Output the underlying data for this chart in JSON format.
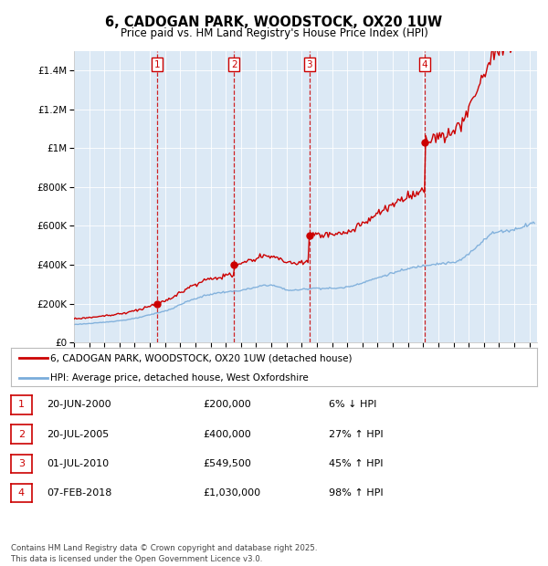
{
  "title": "6, CADOGAN PARK, WOODSTOCK, OX20 1UW",
  "subtitle": "Price paid vs. HM Land Registry's House Price Index (HPI)",
  "footer": "Contains HM Land Registry data © Crown copyright and database right 2025.\nThis data is licensed under the Open Government Licence v3.0.",
  "legend_line1": "6, CADOGAN PARK, WOODSTOCK, OX20 1UW (detached house)",
  "legend_line2": "HPI: Average price, detached house, West Oxfordshire",
  "transactions": [
    {
      "num": 1,
      "date": "20-JUN-2000",
      "date_val": 2000.47,
      "price": 200000,
      "pct": "6%",
      "dir": "↓",
      "label": "6% ↓ HPI"
    },
    {
      "num": 2,
      "date": "20-JUL-2005",
      "date_val": 2005.55,
      "price": 400000,
      "pct": "27%",
      "dir": "↑",
      "label": "27% ↑ HPI"
    },
    {
      "num": 3,
      "date": "01-JUL-2010",
      "date_val": 2010.5,
      "price": 549500,
      "pct": "45%",
      "dir": "↑",
      "label": "45% ↑ HPI"
    },
    {
      "num": 4,
      "date": "07-FEB-2018",
      "date_val": 2018.1,
      "price": 1030000,
      "pct": "98%",
      "dir": "↑",
      "label": "98% ↑ HPI"
    }
  ],
  "property_line_color": "#cc0000",
  "hpi_line_color": "#7aacda",
  "vline_color": "#cc0000",
  "box_color": "#cc0000",
  "background_color": "#dce9f5",
  "plot_bg": "#ffffff",
  "ylim": [
    0,
    1500000
  ],
  "yticks": [
    0,
    200000,
    400000,
    600000,
    800000,
    1000000,
    1200000,
    1400000
  ],
  "xlim_start": 1995.0,
  "xlim_end": 2025.5,
  "xticks": [
    1995,
    1996,
    1997,
    1998,
    1999,
    2000,
    2001,
    2002,
    2003,
    2004,
    2005,
    2006,
    2007,
    2008,
    2009,
    2010,
    2011,
    2012,
    2013,
    2014,
    2015,
    2016,
    2017,
    2018,
    2019,
    2020,
    2021,
    2022,
    2023,
    2024,
    2025
  ],
  "hpi_waypoints": [
    [
      1995.0,
      92000
    ],
    [
      1995.5,
      95000
    ],
    [
      1996.0,
      97000
    ],
    [
      1996.5,
      100000
    ],
    [
      1997.0,
      104000
    ],
    [
      1997.5,
      108000
    ],
    [
      1998.0,
      112000
    ],
    [
      1998.5,
      117000
    ],
    [
      1999.0,
      123000
    ],
    [
      1999.5,
      132000
    ],
    [
      2000.0,
      142000
    ],
    [
      2000.5,
      152000
    ],
    [
      2001.0,
      162000
    ],
    [
      2001.5,
      175000
    ],
    [
      2002.0,
      195000
    ],
    [
      2002.5,
      212000
    ],
    [
      2003.0,
      225000
    ],
    [
      2003.5,
      238000
    ],
    [
      2004.0,
      248000
    ],
    [
      2004.5,
      255000
    ],
    [
      2005.0,
      260000
    ],
    [
      2005.5,
      262000
    ],
    [
      2006.0,
      268000
    ],
    [
      2006.5,
      275000
    ],
    [
      2007.0,
      283000
    ],
    [
      2007.5,
      295000
    ],
    [
      2008.0,
      295000
    ],
    [
      2008.5,
      285000
    ],
    [
      2009.0,
      270000
    ],
    [
      2009.5,
      268000
    ],
    [
      2010.0,
      272000
    ],
    [
      2010.5,
      278000
    ],
    [
      2011.0,
      280000
    ],
    [
      2011.5,
      278000
    ],
    [
      2012.0,
      278000
    ],
    [
      2012.5,
      280000
    ],
    [
      2013.0,
      285000
    ],
    [
      2013.5,
      295000
    ],
    [
      2014.0,
      308000
    ],
    [
      2014.5,
      320000
    ],
    [
      2015.0,
      332000
    ],
    [
      2015.5,
      345000
    ],
    [
      2016.0,
      358000
    ],
    [
      2016.5,
      368000
    ],
    [
      2017.0,
      378000
    ],
    [
      2017.5,
      388000
    ],
    [
      2018.0,
      395000
    ],
    [
      2018.5,
      402000
    ],
    [
      2019.0,
      405000
    ],
    [
      2019.5,
      408000
    ],
    [
      2020.0,
      410000
    ],
    [
      2020.5,
      425000
    ],
    [
      2021.0,
      455000
    ],
    [
      2021.5,
      490000
    ],
    [
      2022.0,
      530000
    ],
    [
      2022.5,
      560000
    ],
    [
      2023.0,
      570000
    ],
    [
      2023.5,
      575000
    ],
    [
      2024.0,
      580000
    ],
    [
      2024.5,
      595000
    ],
    [
      2025.0,
      610000
    ],
    [
      2025.3,
      618000
    ]
  ]
}
